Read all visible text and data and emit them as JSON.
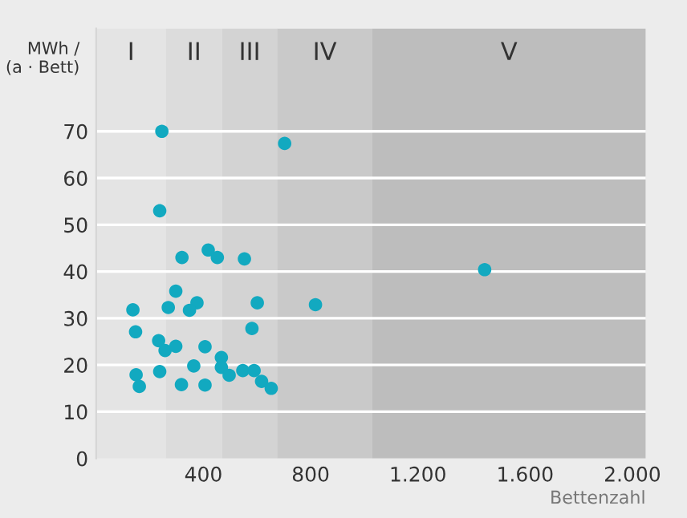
{
  "chart_data": {
    "type": "scatter",
    "xlabel": "Bettenzahl",
    "ylabel": "MWh /\n(a · Bett)",
    "x": [
      245,
      703,
      237,
      320,
      418,
      452,
      553,
      297,
      137,
      269,
      376,
      348,
      601,
      818,
      147,
      581,
      233,
      257,
      297,
      406,
      467,
      364,
      237,
      467,
      496,
      547,
      589,
      149,
      617,
      653,
      161,
      318,
      406,
      1449
    ],
    "values": [
      70,
      67.4,
      53,
      43,
      44.6,
      43,
      42.7,
      35.8,
      31.8,
      32.3,
      33.3,
      31.7,
      33.3,
      32.9,
      27.1,
      27.8,
      25.2,
      23.1,
      24,
      23.9,
      21.6,
      19.8,
      18.6,
      19.5,
      17.8,
      18.8,
      18.8,
      17.9,
      16.5,
      15,
      15.4,
      15.8,
      15.7,
      40.4
    ],
    "color": "#12a9c0",
    "marker": "circle",
    "xlim": [
      0,
      2050
    ],
    "ylim": [
      0,
      92
    ],
    "xticks": [
      {
        "value": 400,
        "label": "400"
      },
      {
        "value": 800,
        "label": "800"
      },
      {
        "value": 1200,
        "label": "1.200"
      },
      {
        "value": 1600,
        "label": "1.600"
      },
      {
        "value": 2000,
        "label": "2.000"
      }
    ],
    "yticks": [
      0,
      10,
      20,
      30,
      40,
      50,
      60,
      70
    ],
    "grid": "y",
    "bands": [
      {
        "axis": "x",
        "from": 0,
        "to": 260,
        "label": "I",
        "color": "#e4e4e4"
      },
      {
        "axis": "x",
        "from": 260,
        "to": 470,
        "label": "II",
        "color": "#dcdcdc"
      },
      {
        "axis": "x",
        "from": 470,
        "to": 675,
        "label": "III",
        "color": "#d3d3d3"
      },
      {
        "axis": "x",
        "from": 675,
        "to": 1030,
        "label": "IV",
        "color": "#c9c9c9"
      },
      {
        "axis": "x",
        "from": 1030,
        "to": 2050,
        "label": "V",
        "color": "#bdbdbd"
      }
    ]
  }
}
